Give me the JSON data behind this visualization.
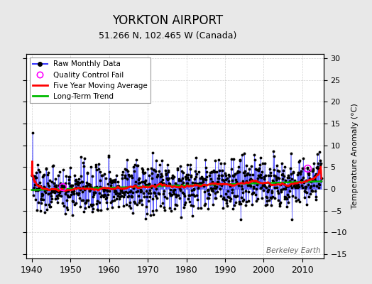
{
  "title": "YORKTON AIRPORT",
  "subtitle": "51.266 N, 102.465 W (Canada)",
  "ylabel": "Temperature Anomaly (°C)",
  "watermark": "Berkeley Earth",
  "xlim": [
    1938.5,
    2015.5
  ],
  "ylim": [
    -16,
    31
  ],
  "yticks": [
    -15,
    -10,
    -5,
    0,
    5,
    10,
    15,
    20,
    25,
    30
  ],
  "xticks": [
    1940,
    1950,
    1960,
    1970,
    1980,
    1990,
    2000,
    2010
  ],
  "bg_color": "#e8e8e8",
  "plot_bg_color": "#ffffff",
  "grid_color": "#cccccc",
  "raw_line_color": "#3333ff",
  "raw_dot_color": "#000000",
  "ma_color": "#ff0000",
  "trend_color": "#00bb00",
  "qc_fail_color": "#ff00ff",
  "title_fontsize": 12,
  "subtitle_fontsize": 9,
  "seed": 137
}
